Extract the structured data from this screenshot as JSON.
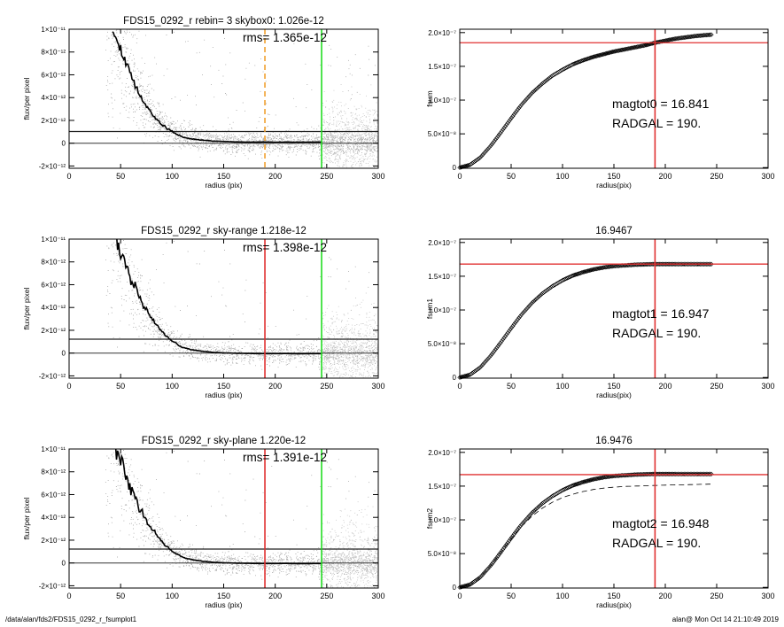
{
  "footer": {
    "left": "/data/alan/fds2/FDS15_0292_r_fsumplot1",
    "right": "alan@  Mon Oct 14 21:10:49 2019"
  },
  "colors": {
    "axis": "#000000",
    "scatter": "#8c8c8c",
    "scatter_light": "#c8c8c8",
    "profile": "#000000",
    "red": "#e03030",
    "green": "#22dd22",
    "orange": "#f0a030",
    "dashed_curve": "#000000"
  },
  "chart_data": [
    {
      "type": "scatter",
      "panel": "profile-top",
      "title": "FDS15_0292_r rebin= 3    skybox0:  1.026e-12",
      "annotation": "rms= 1.365e-12",
      "xlabel": "radius (pix)",
      "ylabel": "flux/per pixel",
      "xlim": [
        0,
        300
      ],
      "ylim": [
        -2.2e-12,
        1e-11
      ],
      "xticks": [
        0,
        50,
        100,
        150,
        200,
        250,
        300
      ],
      "xtick_labels": [
        "0",
        "50",
        "100",
        "150",
        "200",
        "250",
        "300"
      ],
      "yticks": [
        -2e-12,
        0,
        2e-12,
        4e-12,
        6e-12,
        8e-12,
        1e-11
      ],
      "ytick_labels": [
        "-2×10⁻¹²",
        "0",
        "2×10⁻¹²",
        "4×10⁻¹²",
        "6×10⁻¹²",
        "8×10⁻¹²",
        "1×10⁻¹¹"
      ],
      "sky_level": 1.026e-12,
      "vlines": [
        {
          "x": 190,
          "color": "orange",
          "style": "dashed"
        },
        {
          "x": 245,
          "color": "green",
          "style": "solid"
        }
      ],
      "profile": {
        "x": [
          42,
          45,
          50,
          55,
          60,
          65,
          70,
          75,
          80,
          85,
          90,
          95,
          100,
          105,
          110,
          120,
          130,
          140,
          150,
          160,
          170,
          180,
          190,
          200,
          210,
          220,
          230,
          245
        ],
        "y": [
          1e-11,
          9.3e-12,
          8.2e-12,
          7e-12,
          5.9e-12,
          4.9e-12,
          4.1e-12,
          3.3e-12,
          2.7e-12,
          2.1e-12,
          1.65e-12,
          1.3e-12,
          1e-12,
          7.5e-13,
          5.5e-13,
          3.6e-13,
          2.6e-13,
          1.8e-13,
          1.5e-13,
          1.2e-13,
          1e-13,
          1e-13,
          1e-13,
          9e-14,
          1e-13,
          9e-14,
          1e-13,
          1e-13
        ]
      }
    },
    {
      "type": "line",
      "panel": "fsum-top",
      "title": "",
      "xlabel": "radius(pix)",
      "ylabel": "fsum",
      "xlim": [
        0,
        300
      ],
      "ylim": [
        -1e-09,
        2.05e-07
      ],
      "xticks": [
        0,
        50,
        100,
        150,
        200,
        250,
        300
      ],
      "xtick_labels": [
        "0",
        "50",
        "100",
        "150",
        "200",
        "250",
        "300"
      ],
      "yticks": [
        0,
        5e-08,
        1e-07,
        1.5e-07,
        2e-07
      ],
      "ytick_labels": [
        "0",
        "5.0×10⁻⁸",
        "1.0×10⁻⁷",
        "1.5×10⁻⁷",
        "2.0×10⁻⁷"
      ],
      "annotations": [
        "magtot0 =  16.841",
        "RADGAL =    190."
      ],
      "hline": 1.85e-07,
      "vline": 190,
      "curve": {
        "x": [
          0,
          10,
          20,
          30,
          40,
          50,
          60,
          70,
          80,
          90,
          100,
          110,
          120,
          130,
          140,
          150,
          160,
          170,
          180,
          190,
          200,
          210,
          220,
          230,
          245
        ],
        "y": [
          0,
          4e-09,
          1.5e-08,
          3.2e-08,
          5.2e-08,
          7.3e-08,
          9.3e-08,
          1.1e-07,
          1.24e-07,
          1.36e-07,
          1.45e-07,
          1.53e-07,
          1.59e-07,
          1.64e-07,
          1.68e-07,
          1.72e-07,
          1.75e-07,
          1.78e-07,
          1.81e-07,
          1.85e-07,
          1.88e-07,
          1.91e-07,
          1.93e-07,
          1.95e-07,
          1.97e-07
        ]
      }
    },
    {
      "type": "scatter",
      "panel": "profile-mid",
      "title": "FDS15_0292_r sky-range  1.218e-12",
      "annotation": "rms= 1.398e-12",
      "xlabel": "radius (pix)",
      "ylabel": "flux/per pixel",
      "xlim": [
        0,
        300
      ],
      "ylim": [
        -2.2e-12,
        1e-11
      ],
      "xticks": [
        0,
        50,
        100,
        150,
        200,
        250,
        300
      ],
      "xtick_labels": [
        "0",
        "50",
        "100",
        "150",
        "200",
        "250",
        "300"
      ],
      "yticks": [
        -2e-12,
        0,
        2e-12,
        4e-12,
        6e-12,
        8e-12,
        1e-11
      ],
      "ytick_labels": [
        "-2×10⁻¹²",
        "0",
        "2×10⁻¹²",
        "4×10⁻¹²",
        "6×10⁻¹²",
        "8×10⁻¹²",
        "1×10⁻¹¹"
      ],
      "sky_level": 1.218e-12,
      "vlines": [
        {
          "x": 190,
          "color": "red",
          "style": "solid"
        },
        {
          "x": 245,
          "color": "green",
          "style": "solid"
        }
      ],
      "profile": {
        "x": [
          45,
          50,
          55,
          60,
          65,
          70,
          75,
          80,
          85,
          90,
          95,
          100,
          105,
          110,
          120,
          130,
          140,
          150,
          160,
          170,
          180,
          190,
          200,
          210,
          220,
          230,
          245
        ],
        "y": [
          1e-11,
          8.9e-12,
          7.7e-12,
          6.5e-12,
          5.5e-12,
          4.5e-12,
          3.7e-12,
          3e-12,
          2.4e-12,
          1.85e-12,
          1.4e-12,
          1.05e-12,
          7.5e-13,
          5e-13,
          2.8e-13,
          1.5e-13,
          6e-14,
          2e-14,
          -1e-14,
          -3e-14,
          -4e-14,
          -5e-14,
          -5e-14,
          -4e-14,
          -6e-14,
          -5e-14,
          -5e-14
        ]
      }
    },
    {
      "type": "line",
      "panel": "fsum-mid",
      "title": "16.9467",
      "xlabel": "radius(pix)",
      "ylabel": "fsum1",
      "xlim": [
        0,
        300
      ],
      "ylim": [
        -1e-09,
        2.05e-07
      ],
      "xticks": [
        0,
        50,
        100,
        150,
        200,
        250,
        300
      ],
      "xtick_labels": [
        "0",
        "50",
        "100",
        "150",
        "200",
        "250",
        "300"
      ],
      "yticks": [
        0,
        5e-08,
        1e-07,
        1.5e-07,
        2e-07
      ],
      "ytick_labels": [
        "0",
        "5.0×10⁻⁸",
        "1.0×10⁻⁷",
        "1.5×10⁻⁷",
        "2.0×10⁻⁷"
      ],
      "annotations": [
        "magtot1 =  16.947",
        "RADGAL =    190."
      ],
      "hline": 1.68e-07,
      "vline": 190,
      "curve": {
        "x": [
          0,
          10,
          20,
          30,
          40,
          50,
          60,
          70,
          80,
          90,
          100,
          110,
          120,
          130,
          140,
          150,
          160,
          170,
          180,
          190,
          200,
          210,
          220,
          230,
          245
        ],
        "y": [
          0,
          4e-09,
          1.5e-08,
          3.2e-08,
          5.2e-08,
          7.3e-08,
          9.3e-08,
          1.1e-07,
          1.24e-07,
          1.35e-07,
          1.44e-07,
          1.51e-07,
          1.56e-07,
          1.6e-07,
          1.63e-07,
          1.65e-07,
          1.66e-07,
          1.67e-07,
          1.675e-07,
          1.68e-07,
          1.68e-07,
          1.68e-07,
          1.68e-07,
          1.68e-07,
          1.68e-07
        ]
      }
    },
    {
      "type": "scatter",
      "panel": "profile-bot",
      "title": "FDS15_0292_r sky-plane  1.220e-12",
      "annotation": "rms= 1.391e-12",
      "xlabel": "radius (pix)",
      "ylabel": "flux/per pixel",
      "xlim": [
        0,
        300
      ],
      "ylim": [
        -2.2e-12,
        1e-11
      ],
      "xticks": [
        0,
        50,
        100,
        150,
        200,
        250,
        300
      ],
      "xtick_labels": [
        "0",
        "50",
        "100",
        "150",
        "200",
        "250",
        "300"
      ],
      "yticks": [
        -2e-12,
        0,
        2e-12,
        4e-12,
        6e-12,
        8e-12,
        1e-11
      ],
      "ytick_labels": [
        "-2×10⁻¹²",
        "0",
        "2×10⁻¹²",
        "4×10⁻¹²",
        "6×10⁻¹²",
        "8×10⁻¹²",
        "1×10⁻¹¹"
      ],
      "sky_level": 1.22e-12,
      "vlines": [
        {
          "x": 190,
          "color": "red",
          "style": "solid"
        },
        {
          "x": 245,
          "color": "green",
          "style": "solid"
        }
      ],
      "profile": {
        "x": [
          45,
          50,
          55,
          60,
          65,
          70,
          75,
          80,
          85,
          90,
          95,
          100,
          105,
          110,
          120,
          130,
          140,
          150,
          160,
          170,
          180,
          190,
          200,
          210,
          220,
          230,
          245
        ],
        "y": [
          1e-11,
          8.9e-12,
          7.7e-12,
          6.5e-12,
          5.5e-12,
          4.5e-12,
          3.7e-12,
          3e-12,
          2.4e-12,
          1.85e-12,
          1.4e-12,
          1.05e-12,
          7.5e-13,
          5e-13,
          2.8e-13,
          1.5e-13,
          6e-14,
          2e-14,
          -1e-14,
          -3e-14,
          -4e-14,
          -5e-14,
          -5e-14,
          -4e-14,
          -6e-14,
          -5e-14,
          -5e-14
        ]
      }
    },
    {
      "type": "line",
      "panel": "fsum-bot",
      "title": "16.9476",
      "xlabel": "radius(pix)",
      "ylabel": "fsum2",
      "xlim": [
        0,
        300
      ],
      "ylim": [
        -1e-09,
        2.05e-07
      ],
      "xticks": [
        0,
        50,
        100,
        150,
        200,
        250,
        300
      ],
      "xtick_labels": [
        "0",
        "50",
        "100",
        "150",
        "200",
        "250",
        "300"
      ],
      "yticks": [
        0,
        5e-08,
        1e-07,
        1.5e-07,
        2e-07
      ],
      "ytick_labels": [
        "0",
        "5.0×10⁻⁸",
        "1.0×10⁻⁷",
        "1.5×10⁻⁷",
        "2.0×10⁻⁷"
      ],
      "annotations": [
        "magtot2 =  16.948",
        "RADGAL =    190."
      ],
      "hline": 1.67e-07,
      "vline": 190,
      "curve": {
        "x": [
          0,
          10,
          20,
          30,
          40,
          50,
          60,
          70,
          80,
          90,
          100,
          110,
          120,
          130,
          140,
          150,
          160,
          170,
          180,
          190,
          200,
          210,
          220,
          230,
          245
        ],
        "y": [
          0,
          4e-09,
          1.5e-08,
          3.2e-08,
          5.2e-08,
          7.3e-08,
          9.3e-08,
          1.1e-07,
          1.24e-07,
          1.35e-07,
          1.44e-07,
          1.51e-07,
          1.56e-07,
          1.6e-07,
          1.63e-07,
          1.65e-07,
          1.66e-07,
          1.67e-07,
          1.675e-07,
          1.68e-07,
          1.68e-07,
          1.68e-07,
          1.68e-07,
          1.68e-07,
          1.68e-07
        ]
      },
      "dashed_curve": {
        "x": [
          0,
          10,
          20,
          30,
          40,
          50,
          60,
          70,
          80,
          90,
          100,
          110,
          120,
          130,
          140,
          150,
          160,
          170,
          180,
          190,
          200,
          210,
          220,
          230,
          245
        ],
        "y": [
          0,
          4e-09,
          1.5e-08,
          3.2e-08,
          5.2e-08,
          7.2e-08,
          9e-08,
          1.05e-07,
          1.17e-07,
          1.26e-07,
          1.33e-07,
          1.38e-07,
          1.42e-07,
          1.45e-07,
          1.47e-07,
          1.485e-07,
          1.495e-07,
          1.5e-07,
          1.505e-07,
          1.51e-07,
          1.515e-07,
          1.52e-07,
          1.52e-07,
          1.525e-07,
          1.53e-07
        ]
      }
    }
  ]
}
